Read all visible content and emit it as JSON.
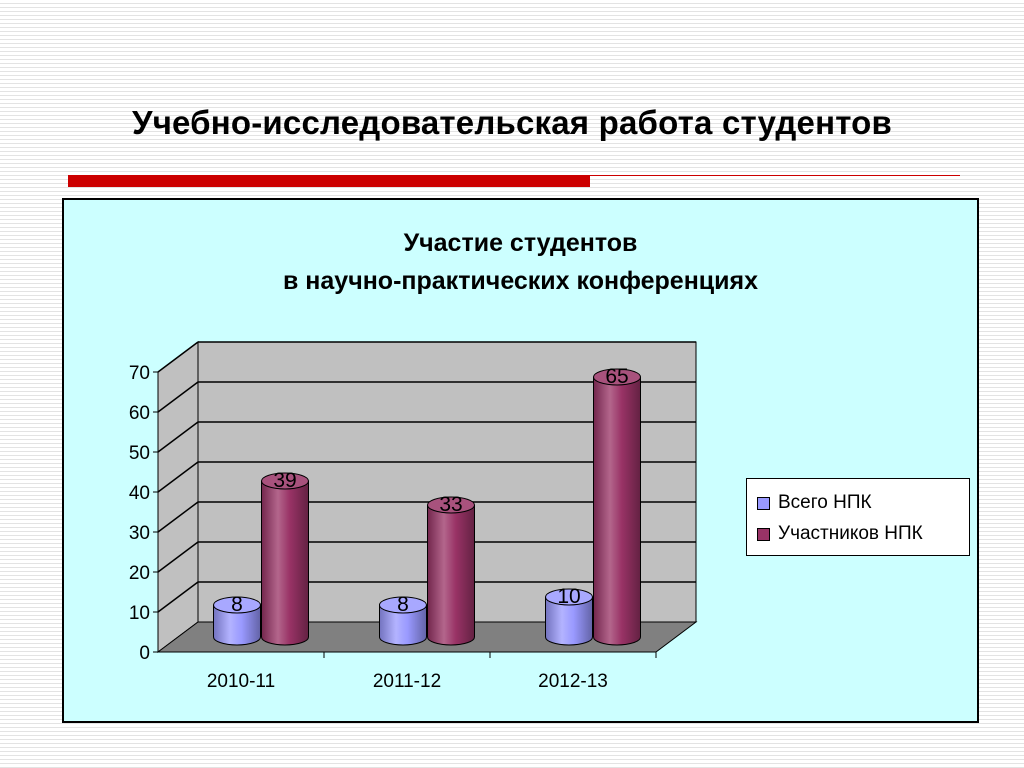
{
  "slide": {
    "title": "Учебно-исследовательская работа студентов"
  },
  "colors": {
    "accent_rule": "#cc0000",
    "chart_background": "#ccffff",
    "plot_wall": "#c0c0c0",
    "plot_floor": "#808080",
    "series_total": "#9999ff",
    "series_participants": "#993366"
  },
  "chart_data": {
    "type": "bar",
    "title_line1": "Участие студентов",
    "title_line2": "в научно-практических конференциях",
    "categories": [
      "2010-11",
      "2011-12",
      "2012-13"
    ],
    "series": [
      {
        "name": "Всего НПК",
        "values": [
          8,
          8,
          10
        ]
      },
      {
        "name": "Участников НПК",
        "values": [
          39,
          33,
          65
        ]
      }
    ],
    "ylim": [
      0,
      70
    ],
    "yticks": [
      0,
      10,
      20,
      30,
      40,
      50,
      60,
      70
    ],
    "grid": true,
    "style": "3d-cylinder",
    "legend": "right",
    "data_labels": true
  }
}
